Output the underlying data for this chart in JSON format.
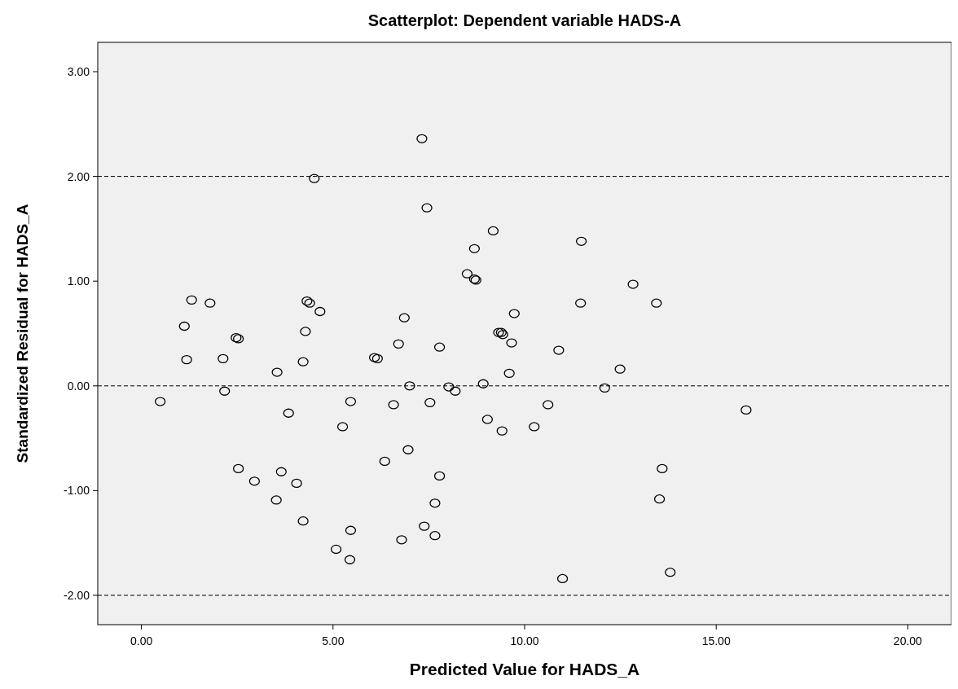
{
  "chart_data": {
    "type": "scatter",
    "title": "Scatterplot: Dependent variable HADS-A",
    "xlabel": "Predicted Value for HADS_A",
    "ylabel": "Standardized Residual for HADS_A",
    "xlim": [
      -1.14,
      21.14
    ],
    "ylim": [
      -2.28,
      3.28
    ],
    "xticks": [
      {
        "value": 0,
        "label": "0.00"
      },
      {
        "value": 5,
        "label": "5.00"
      },
      {
        "value": 10,
        "label": "10.00"
      },
      {
        "value": 15,
        "label": "15.00"
      },
      {
        "value": 20,
        "label": "20.00"
      }
    ],
    "yticks": [
      {
        "value": -2,
        "label": "-2.00"
      },
      {
        "value": -1,
        "label": "-1.00"
      },
      {
        "value": 0,
        "label": "0.00"
      },
      {
        "value": 1,
        "label": "1.00"
      },
      {
        "value": 2,
        "label": "2.00"
      },
      {
        "value": 3,
        "label": "3.00"
      }
    ],
    "grid": false,
    "marker": "circle",
    "ref_lines": [
      {
        "axis": "y",
        "value": 2,
        "color": "#000000",
        "line_style": "dashed"
      },
      {
        "axis": "y",
        "value": 0,
        "color": "#000000",
        "line_style": "dashed"
      },
      {
        "axis": "y",
        "value": -2,
        "color": "#000000",
        "line_style": "dashed"
      }
    ],
    "series": [
      {
        "color": "#000000",
        "x": [
          0.49,
          1.12,
          1.18,
          1.31,
          2.13,
          2.17,
          1.79,
          2.47,
          2.53,
          2.53,
          2.95,
          3.54,
          3.52,
          3.65,
          3.84,
          4.05,
          4.22,
          4.22,
          4.28,
          4.32,
          4.39,
          4.51,
          4.66,
          5.08,
          5.25,
          5.44,
          5.46,
          5.46,
          6.08,
          6.16,
          6.35,
          6.58,
          6.71,
          6.79,
          6.86,
          6.96,
          7.0,
          7.32,
          7.38,
          7.45,
          7.53,
          7.66,
          7.66,
          7.78,
          7.78,
          8.02,
          8.19,
          8.5,
          8.69,
          8.69,
          8.73,
          8.92,
          9.03,
          9.18,
          9.32,
          9.39,
          9.41,
          9.43,
          9.6,
          9.66,
          9.73,
          10.25,
          10.61,
          10.89,
          10.99,
          11.46,
          11.48,
          12.09,
          12.49,
          12.83,
          13.44,
          13.52,
          13.59,
          13.8,
          15.78
        ],
        "values": [
          -0.15,
          0.57,
          0.25,
          0.82,
          0.26,
          -0.05,
          0.79,
          0.46,
          0.45,
          -0.79,
          -0.91,
          0.13,
          -1.09,
          -0.82,
          -0.26,
          -0.93,
          0.23,
          -1.29,
          0.52,
          0.81,
          0.79,
          1.98,
          0.71,
          -1.56,
          -0.39,
          -1.66,
          -1.38,
          -0.15,
          0.27,
          0.26,
          -0.72,
          -0.18,
          0.4,
          -1.47,
          0.65,
          -0.61,
          0.0,
          2.36,
          -1.34,
          1.7,
          -0.16,
          -1.12,
          -1.43,
          -0.86,
          0.37,
          -0.01,
          -0.05,
          1.07,
          1.31,
          1.02,
          1.01,
          0.02,
          -0.32,
          1.48,
          0.51,
          0.51,
          -0.43,
          0.49,
          0.12,
          0.41,
          0.69,
          -0.39,
          -0.18,
          0.34,
          -1.84,
          0.79,
          1.38,
          -0.02,
          0.16,
          0.97,
          0.79,
          -1.08,
          -0.79,
          -1.78,
          -0.23
        ]
      }
    ]
  }
}
